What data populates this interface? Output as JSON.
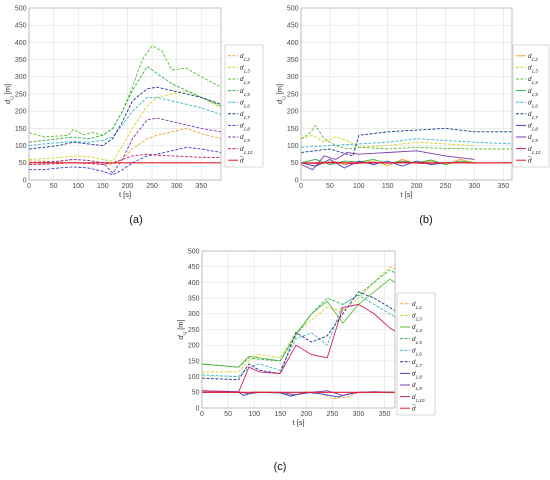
{
  "chart_data": [
    {
      "type": "line",
      "caption": "(a)",
      "xlabel": "t [s]",
      "ylabel": "d_{i,j} [m]",
      "xlim": [
        0,
        390
      ],
      "ylim": [
        0,
        500
      ],
      "xticks": [
        0,
        50,
        100,
        150,
        200,
        250,
        300,
        350
      ],
      "yticks": [
        0,
        50,
        100,
        150,
        200,
        250,
        300,
        350,
        400,
        450,
        500
      ],
      "grid": true,
      "legend": "outside-right",
      "series": [
        {
          "name": "d_{1,2}",
          "color": "#f5a23a",
          "dash": "3,1.5",
          "x": [
            0,
            30,
            60,
            90,
            120,
            150,
            170,
            190,
            210,
            240,
            260,
            290,
            320,
            350,
            390
          ],
          "y": [
            55,
            55,
            52,
            60,
            57,
            50,
            45,
            60,
            90,
            120,
            130,
            140,
            150,
            135,
            120
          ]
        },
        {
          "name": "d_{1,3}",
          "color": "#d8d22a",
          "dash": "3,1.5",
          "x": [
            0,
            30,
            60,
            90,
            120,
            150,
            170,
            190,
            210,
            240,
            260,
            290,
            320,
            350,
            390
          ],
          "y": [
            60,
            62,
            65,
            70,
            68,
            60,
            55,
            100,
            150,
            215,
            240,
            250,
            260,
            240,
            210
          ]
        },
        {
          "name": "d_{1,4}",
          "color": "#5fbf3a",
          "dash": "3,1.5",
          "x": [
            0,
            30,
            60,
            80,
            90,
            110,
            130,
            150,
            170,
            190,
            210,
            230,
            250,
            270,
            290,
            320,
            350,
            390
          ],
          "y": [
            138,
            125,
            128,
            130,
            147,
            132,
            138,
            130,
            150,
            200,
            270,
            350,
            390,
            375,
            320,
            325,
            300,
            270
          ]
        },
        {
          "name": "d_{1,5}",
          "color": "#36b04a",
          "dash": "3,1.5",
          "x": [
            0,
            30,
            60,
            90,
            120,
            150,
            170,
            190,
            210,
            240,
            260,
            290,
            320,
            350,
            390
          ],
          "y": [
            110,
            115,
            120,
            125,
            120,
            130,
            150,
            200,
            260,
            330,
            310,
            280,
            260,
            240,
            215
          ]
        },
        {
          "name": "d_{1,6}",
          "color": "#3fb6c8",
          "dash": "3,1.5",
          "x": [
            0,
            30,
            60,
            90,
            120,
            150,
            170,
            190,
            210,
            240,
            260,
            290,
            320,
            350,
            390
          ],
          "y": [
            100,
            105,
            108,
            112,
            110,
            115,
            125,
            160,
            200,
            240,
            240,
            230,
            220,
            210,
            190
          ]
        },
        {
          "name": "d_{1,7}",
          "color": "#1f3b8c",
          "dash": "3,1.5",
          "x": [
            0,
            30,
            60,
            90,
            120,
            150,
            170,
            190,
            210,
            240,
            260,
            290,
            320,
            350,
            390
          ],
          "y": [
            90,
            95,
            100,
            110,
            105,
            100,
            120,
            170,
            230,
            265,
            270,
            260,
            250,
            240,
            220
          ]
        },
        {
          "name": "d_{1,8}",
          "color": "#3b3fd0",
          "dash": "3,1.5",
          "x": [
            0,
            30,
            60,
            90,
            120,
            150,
            170,
            190,
            210,
            240,
            260,
            290,
            320,
            350,
            390
          ],
          "y": [
            30,
            30,
            35,
            38,
            35,
            25,
            15,
            30,
            50,
            70,
            75,
            85,
            95,
            90,
            80
          ]
        },
        {
          "name": "d_{1,9}",
          "color": "#7a3ea6",
          "dash": "3,1.5",
          "x": [
            0,
            30,
            60,
            90,
            120,
            150,
            170,
            190,
            210,
            240,
            260,
            290,
            320,
            350,
            390
          ],
          "y": [
            50,
            52,
            55,
            60,
            57,
            50,
            20,
            60,
            120,
            175,
            180,
            170,
            160,
            150,
            140
          ]
        },
        {
          "name": "d_{1,10}",
          "color": "#d0206a",
          "dash": "3,1.5",
          "x": [
            0,
            30,
            60,
            90,
            120,
            150,
            170,
            190,
            210,
            240,
            260,
            290,
            320,
            350,
            390
          ],
          "y": [
            45,
            46,
            48,
            50,
            48,
            45,
            50,
            60,
            70,
            75,
            72,
            70,
            68,
            66,
            65
          ]
        },
        {
          "name": "d",
          "color": "#e01e2a",
          "dash": "",
          "x": [
            0,
            390
          ],
          "y": [
            50,
            50
          ]
        }
      ]
    },
    {
      "type": "line",
      "caption": "(b)",
      "xlabel": "t [s]",
      "ylabel": "d_{i,j} [m]",
      "xlim": [
        0,
        365
      ],
      "ylim": [
        0,
        500
      ],
      "xticks": [
        0,
        50,
        100,
        150,
        200,
        250,
        300,
        350
      ],
      "yticks": [
        0,
        50,
        100,
        150,
        200,
        250,
        300,
        350,
        400,
        450,
        500
      ],
      "grid": true,
      "legend": "outside-right",
      "series": [
        {
          "name": "d_{1,2}",
          "color": "#f5a23a",
          "dash": "",
          "x": [
            0,
            25,
            50,
            75,
            100,
            125,
            150,
            175,
            200,
            225,
            250,
            275,
            300
          ],
          "y": [
            50,
            40,
            55,
            45,
            50,
            55,
            42,
            60,
            48,
            55,
            45,
            60,
            50
          ]
        },
        {
          "name": "d_{1,3}",
          "color": "#d8d22a",
          "dash": "3,1.5",
          "x": [
            0,
            20,
            40,
            60,
            80,
            100,
            150,
            200,
            250,
            300
          ],
          "y": [
            120,
            130,
            110,
            125,
            115,
            95,
            100,
            110,
            105,
            100
          ]
        },
        {
          "name": "d_{1,4}",
          "color": "#5fbf3a",
          "dash": "3,1.5",
          "x": [
            0,
            15,
            25,
            40,
            60,
            80,
            100,
            150,
            200,
            250,
            300,
            365
          ],
          "y": [
            120,
            135,
            158,
            120,
            100,
            90,
            95,
            90,
            95,
            92,
            90,
            90
          ]
        },
        {
          "name": "d_{1,5}",
          "color": "#36b04a",
          "dash": "",
          "x": [
            0,
            25,
            50,
            75,
            100,
            125,
            150,
            175,
            200,
            225,
            250,
            275,
            300
          ],
          "y": [
            50,
            60,
            45,
            55,
            52,
            60,
            48,
            55,
            50,
            58,
            45,
            55,
            50
          ]
        },
        {
          "name": "d_{1,6}",
          "color": "#3fb6c8",
          "dash": "3,1.5",
          "x": [
            0,
            50,
            100,
            150,
            200,
            250,
            300,
            365
          ],
          "y": [
            95,
            100,
            105,
            110,
            120,
            115,
            110,
            105
          ]
        },
        {
          "name": "d_{1,7}",
          "color": "#1f3b8c",
          "dash": "3,1.5",
          "x": [
            0,
            50,
            90,
            100,
            150,
            200,
            250,
            300,
            365
          ],
          "y": [
            80,
            90,
            70,
            130,
            140,
            145,
            150,
            140,
            140
          ]
        },
        {
          "name": "d_{1,8}",
          "color": "#3b3fd0",
          "dash": "",
          "x": [
            0,
            25,
            50,
            75,
            100,
            125,
            150,
            175,
            200,
            225,
            250
          ],
          "y": [
            50,
            40,
            60,
            35,
            55,
            45,
            55,
            40,
            55,
            45,
            50
          ]
        },
        {
          "name": "d_{1,9}",
          "color": "#7a3ea6",
          "dash": "",
          "x": [
            0,
            20,
            40,
            60,
            80,
            100,
            150,
            200,
            250,
            300
          ],
          "y": [
            45,
            30,
            70,
            60,
            80,
            75,
            80,
            85,
            70,
            60
          ]
        },
        {
          "name": "d_{1,10}",
          "color": "#d0206a",
          "dash": "",
          "x": [
            0,
            30,
            60,
            90,
            120,
            150,
            180,
            210,
            240,
            270,
            300,
            365
          ],
          "y": [
            50,
            48,
            52,
            47,
            51,
            49,
            52,
            48,
            50,
            51,
            49,
            50
          ]
        },
        {
          "name": "d",
          "color": "#e01e2a",
          "dash": "",
          "x": [
            0,
            365
          ],
          "y": [
            50,
            50
          ]
        }
      ]
    },
    {
      "type": "line",
      "caption": "(c)",
      "xlabel": "t [s]",
      "ylabel": "d_{i,j} [m]",
      "xlim": [
        0,
        370
      ],
      "ylim": [
        0,
        500
      ],
      "xticks": [
        0,
        50,
        100,
        150,
        200,
        250,
        300,
        350
      ],
      "yticks": [
        0,
        50,
        100,
        150,
        200,
        250,
        300,
        350,
        400,
        450,
        500
      ],
      "grid": true,
      "legend": "outside-right",
      "series": [
        {
          "name": "d_{1,2}",
          "color": "#f5a23a",
          "dash": "3,1.5",
          "x": [
            0,
            70,
            80,
            100,
            150,
            175,
            200,
            225,
            250,
            280,
            300,
            370
          ],
          "y": [
            50,
            50,
            40,
            52,
            50,
            40,
            52,
            48,
            30,
            35,
            50,
            50
          ]
        },
        {
          "name": "d_{1,3}",
          "color": "#d8d22a",
          "dash": "3,1.5",
          "x": [
            0,
            70,
            90,
            110,
            150,
            180,
            210,
            240,
            270,
            300,
            330,
            360,
            370
          ],
          "y": [
            115,
            115,
            150,
            170,
            160,
            240,
            280,
            320,
            310,
            350,
            400,
            450,
            440
          ]
        },
        {
          "name": "d_{1,4}",
          "color": "#5fbf3a",
          "dash": "",
          "x": [
            0,
            70,
            90,
            110,
            150,
            180,
            210,
            240,
            270,
            300,
            330,
            360,
            370
          ],
          "y": [
            140,
            130,
            165,
            160,
            150,
            235,
            300,
            340,
            270,
            330,
            370,
            410,
            400
          ]
        },
        {
          "name": "d_{1,5}",
          "color": "#36b04a",
          "dash": "3,1.5",
          "x": [
            0,
            70,
            90,
            110,
            150,
            180,
            210,
            240,
            270,
            300,
            330,
            360,
            370
          ],
          "y": [
            140,
            130,
            160,
            155,
            150,
            230,
            300,
            350,
            330,
            360,
            400,
            440,
            430
          ]
        },
        {
          "name": "d_{1,6}",
          "color": "#3fb6c8",
          "dash": "3,1.5",
          "x": [
            0,
            70,
            90,
            110,
            150,
            180,
            210,
            240,
            270,
            300,
            330,
            360,
            370
          ],
          "y": [
            105,
            100,
            130,
            140,
            120,
            220,
            240,
            200,
            330,
            360,
            330,
            300,
            290
          ]
        },
        {
          "name": "d_{1,7}",
          "color": "#1f3b8c",
          "dash": "3,1.5",
          "x": [
            0,
            70,
            90,
            110,
            150,
            180,
            210,
            240,
            270,
            300,
            330,
            360,
            370
          ],
          "y": [
            95,
            90,
            140,
            120,
            110,
            240,
            210,
            230,
            300,
            370,
            350,
            320,
            310
          ]
        },
        {
          "name": "d_{1,8}",
          "color": "#3b3fd0",
          "dash": "",
          "x": [
            0,
            70,
            80,
            100,
            150,
            170,
            200,
            230,
            260,
            280,
            300,
            370
          ],
          "y": [
            50,
            50,
            40,
            50,
            48,
            38,
            50,
            45,
            35,
            45,
            50,
            50
          ]
        },
        {
          "name": "d_{1,9}",
          "color": "#7a3ea6",
          "dash": "",
          "x": [
            0,
            70,
            90,
            110,
            150,
            180,
            210,
            240,
            270,
            300,
            330,
            370
          ],
          "y": [
            55,
            52,
            45,
            50,
            50,
            42,
            50,
            55,
            40,
            50,
            52,
            50
          ]
        },
        {
          "name": "d_{1,10}",
          "color": "#d0206a",
          "dash": "",
          "x": [
            0,
            70,
            90,
            110,
            150,
            180,
            210,
            240,
            270,
            300,
            330,
            360,
            370
          ],
          "y": [
            55,
            50,
            130,
            115,
            110,
            200,
            170,
            160,
            320,
            330,
            300,
            255,
            245
          ]
        },
        {
          "name": "d",
          "color": "#e01e2a",
          "dash": "",
          "x": [
            0,
            370
          ],
          "y": [
            50,
            50
          ]
        }
      ]
    }
  ]
}
